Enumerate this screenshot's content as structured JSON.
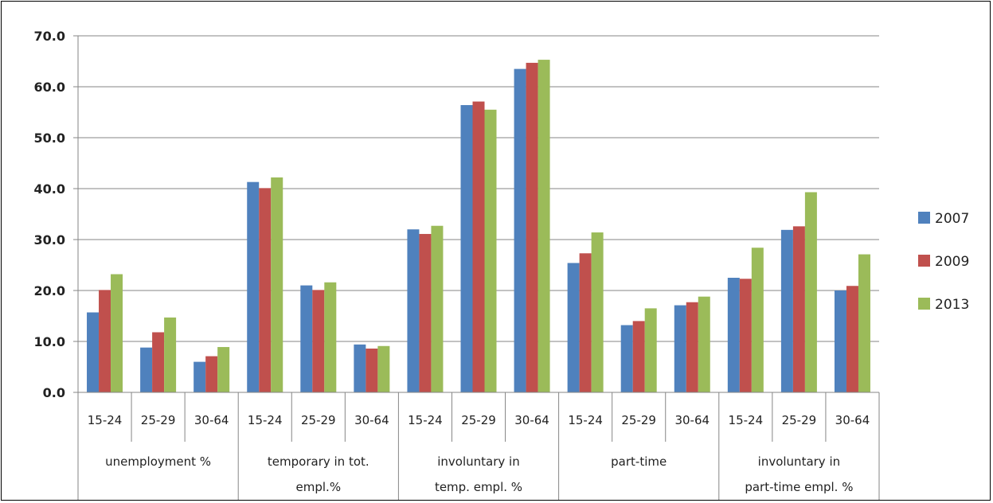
{
  "chart_data": {
    "type": "bar",
    "groups": [
      {
        "label": "unemployment %",
        "label_lines": [
          "unemployment %"
        ],
        "categories": [
          "15-24",
          "25-29",
          "30-64"
        ]
      },
      {
        "label": "temporary in tot. empl.%",
        "label_lines": [
          "temporary in tot.",
          "empl.%"
        ],
        "categories": [
          "15-24",
          "25-29",
          "30-64"
        ]
      },
      {
        "label": "involuntary in temp. empl. %",
        "label_lines": [
          "involuntary in",
          "temp. empl. %"
        ],
        "categories": [
          "15-24",
          "25-29",
          "30-64"
        ]
      },
      {
        "label": "part-time",
        "label_lines": [
          "part-time"
        ],
        "categories": [
          "15-24",
          "25-29",
          "30-64"
        ]
      },
      {
        "label": "involuntary in part-time empl. %",
        "label_lines": [
          "involuntary in",
          "part-time empl. %"
        ],
        "categories": [
          "15-24",
          "25-29",
          "30-64"
        ]
      }
    ],
    "series": [
      {
        "name": "2007",
        "color": "#4F81BD",
        "values": [
          15.7,
          8.8,
          6.0,
          41.3,
          21.0,
          9.4,
          32.0,
          56.4,
          63.5,
          25.4,
          13.2,
          17.1,
          22.5,
          31.9,
          20.0
        ]
      },
      {
        "name": "2009",
        "color": "#C0504D",
        "values": [
          20.1,
          11.8,
          7.1,
          40.1,
          20.1,
          8.6,
          31.1,
          57.1,
          64.7,
          27.3,
          14.0,
          17.7,
          22.3,
          32.6,
          20.9
        ]
      },
      {
        "name": "2013",
        "color": "#9BBB59",
        "values": [
          23.2,
          14.7,
          8.9,
          42.2,
          21.6,
          9.1,
          32.7,
          55.5,
          65.3,
          31.4,
          16.5,
          18.8,
          28.4,
          39.3,
          27.1
        ]
      }
    ],
    "y_ticks": [
      "0.0",
      "10.0",
      "20.0",
      "30.0",
      "40.0",
      "50.0",
      "60.0",
      "70.0"
    ],
    "ylim": [
      0,
      70
    ],
    "grid": true,
    "legend": "right"
  }
}
